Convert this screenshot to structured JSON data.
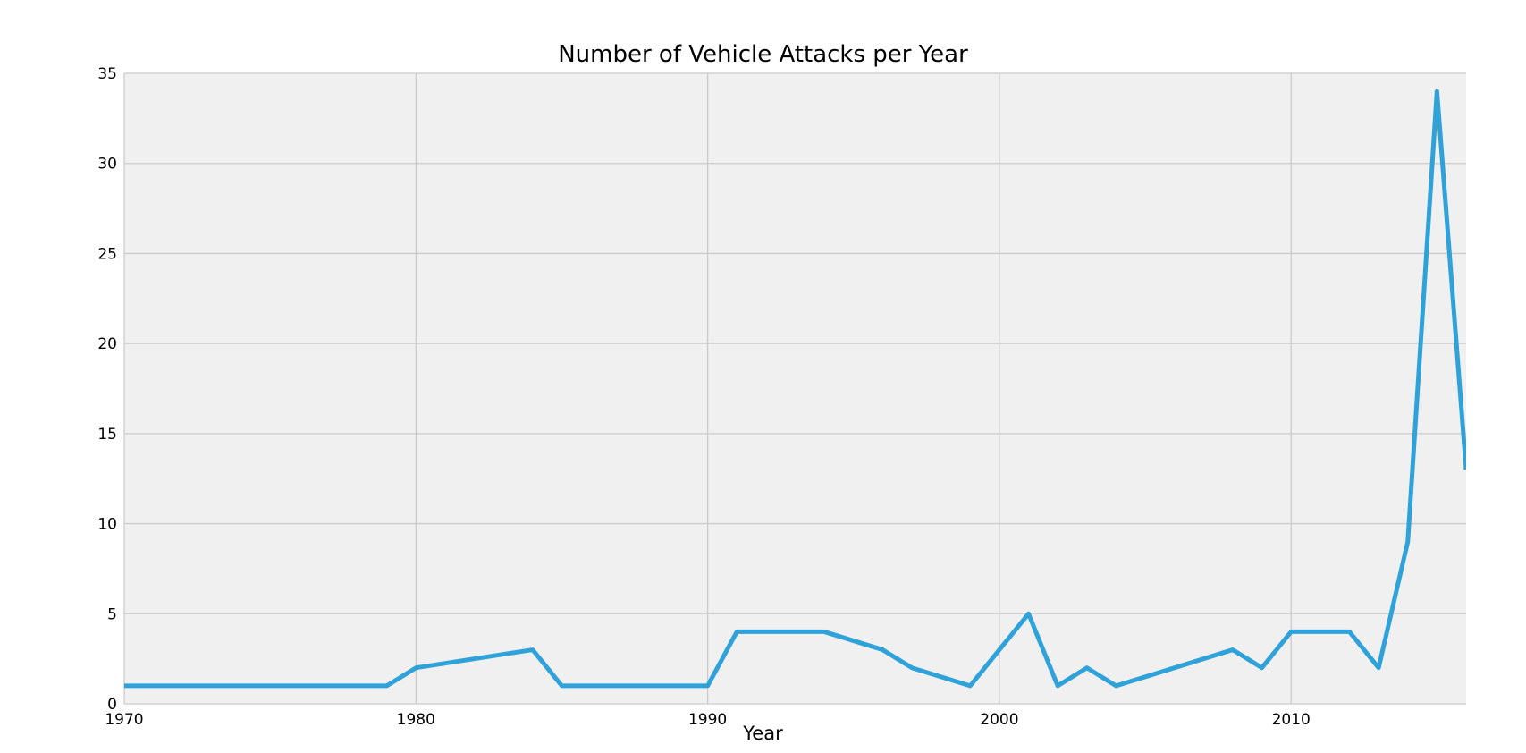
{
  "chart_data": {
    "type": "line",
    "title": "Number of Vehicle Attacks per Year",
    "xlabel": "Year",
    "ylabel": "",
    "xlim": [
      1970,
      2016
    ],
    "ylim": [
      0,
      35
    ],
    "xticks": [
      1970,
      1980,
      1990,
      2000,
      2010
    ],
    "yticks": [
      0,
      5,
      10,
      15,
      20,
      25,
      30,
      35
    ],
    "grid": true,
    "legend": null,
    "series": [
      {
        "color": "#30a2da",
        "x": [
          1970,
          1979,
          1980,
          1984,
          1985,
          1990,
          1991,
          1994,
          1996,
          1997,
          1999,
          2001,
          2002,
          2003,
          2004,
          2008,
          2009,
          2010,
          2012,
          2013,
          2014,
          2015,
          2016
        ],
        "y": [
          1,
          1,
          2,
          3,
          1,
          1,
          4,
          4,
          3,
          2,
          1,
          5,
          1,
          2,
          1,
          3,
          2,
          4,
          4,
          2,
          9,
          34,
          13
        ]
      }
    ]
  },
  "style": {
    "plot_background": "#f0f0f0",
    "grid_color": "#cbcbcb",
    "line_color": "#30a2da"
  }
}
